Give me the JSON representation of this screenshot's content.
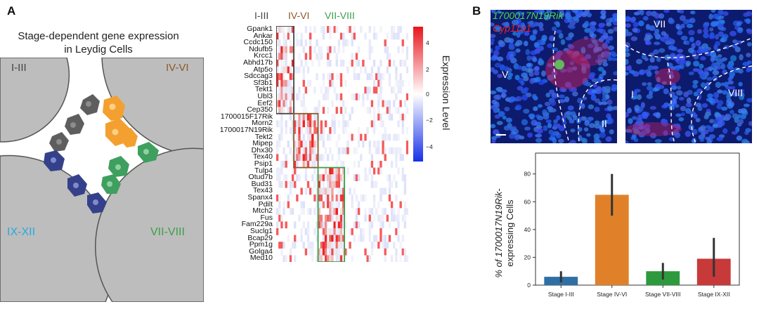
{
  "panels": {
    "a": "A",
    "b": "B"
  },
  "schematic": {
    "title_line1": "Stage-dependent gene expression",
    "title_line2": "in Leydig Cells",
    "stages": {
      "tl": {
        "label": "I-III",
        "color": "#444444"
      },
      "tr": {
        "label": "IV-VI",
        "color": "#8a5a2b"
      },
      "bl": {
        "label": "IX-XII",
        "color": "#29a8e0"
      },
      "br": {
        "label": "VII-VIII",
        "color": "#3aa04a"
      }
    }
  },
  "heatmap": {
    "stage_headers": [
      "I-III",
      "IV-VI",
      "VII-VIII"
    ],
    "stage_header_colors": [
      "#444444",
      "#8a5a2b",
      "#3aa04a"
    ],
    "genes": [
      "Gpank1",
      "Ankar",
      "Ccdc150",
      "Ndufb5",
      "Krcc1",
      "Abhd17b",
      "Atp5o",
      "Sdccag3",
      "Sf3b1",
      "Tekt1",
      "Ubl3",
      "Eef2",
      "Cep350",
      "1700015F17Rik",
      "Morn2",
      "1700017N19Rik",
      "Tekt2",
      "Mipep",
      "Dhx30",
      "Tex40",
      "Psip1",
      "Tulp4",
      "Otud7b",
      "Bud31",
      "Tex43",
      "Spanx4",
      "Pdilt",
      "Mtch2",
      "Fus",
      "Fam229a",
      "Suclg1",
      "Bcap29",
      "Ppm1g",
      "Golga4",
      "Med10"
    ],
    "colorbar": {
      "label": "Expression Level",
      "ticks": [
        "4",
        "2",
        "0",
        "−2",
        "−4"
      ]
    }
  },
  "micrographs": {
    "left": {
      "gene1": "1700017N19Rik",
      "gene1_color": "#4cd84c",
      "gene2": "Cyp11a1",
      "gene2_color": "#e8202a",
      "stages": [
        "V",
        "II"
      ]
    },
    "right": {
      "stages": [
        "VII",
        "I",
        "VIII"
      ]
    }
  },
  "chart_data": {
    "type": "bar",
    "ylabel_italic": "% of 1700017N19Rik-",
    "ylabel_line2": "expressing Cells",
    "categories": [
      "Stage I-III",
      "Stage IV-VI",
      "Stage VII-VIII",
      "Stage IX-XII"
    ],
    "values": [
      6,
      65,
      10,
      19
    ],
    "error_low": [
      2,
      50,
      4,
      6
    ],
    "error_high": [
      10,
      80,
      16,
      34
    ],
    "colors": [
      "#2f6fa6",
      "#e0812a",
      "#2e9a3e",
      "#c8393a"
    ],
    "ylim": [
      0,
      95
    ],
    "yticks": [
      0,
      20,
      40,
      60,
      80
    ]
  }
}
